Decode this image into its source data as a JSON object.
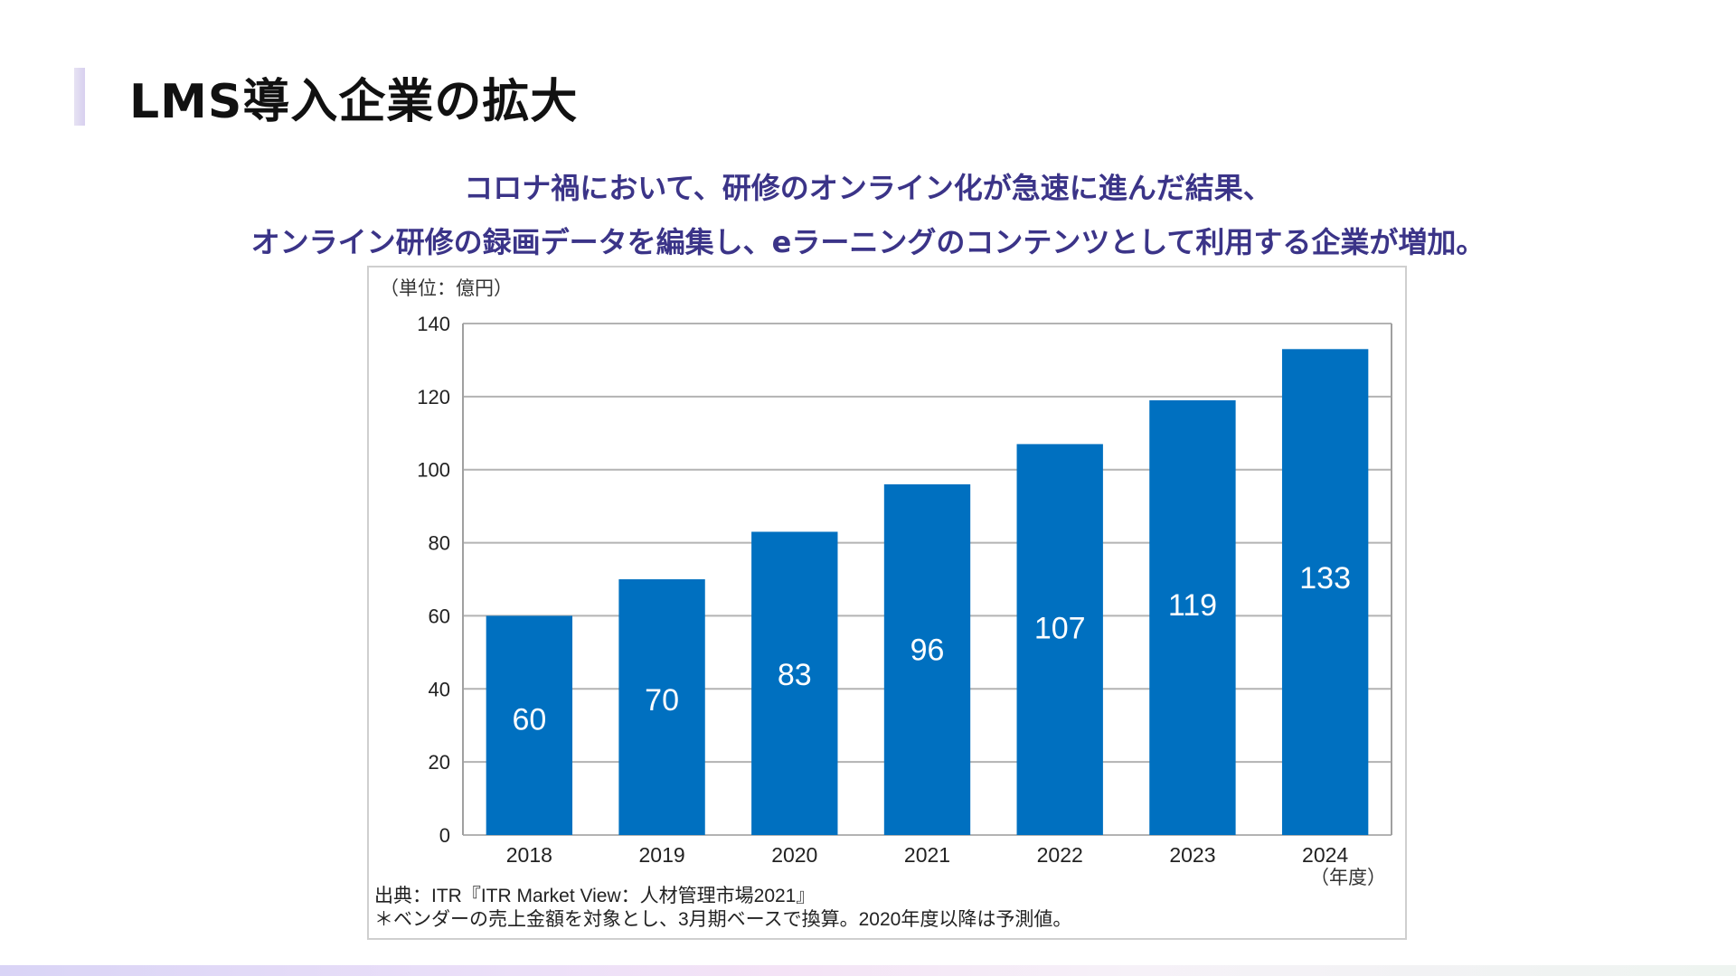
{
  "page": {
    "title": "LMS導入企業の拡大",
    "subtitle_lines": [
      "コロナ禍において、研修のオンライン化が急速に進んだ結果、",
      "オンライン研修の録画データを編集し、eラーニングのコンテンツとして利用する企業が増加。"
    ],
    "colors": {
      "accent": "#3b3488",
      "bar": "#0070c0"
    }
  },
  "chart_data": {
    "type": "bar",
    "title": "",
    "unit_label": "（単位：億円）",
    "xlabel": "（年度）",
    "ylabel": "",
    "categories": [
      "2018",
      "2019",
      "2020",
      "2021",
      "2022",
      "2023",
      "2024"
    ],
    "values": [
      60,
      70,
      83,
      96,
      107,
      119,
      133
    ],
    "ylim": [
      0,
      140
    ],
    "yticks": [
      0,
      20,
      40,
      60,
      80,
      100,
      120,
      140
    ],
    "grid": true,
    "data_labels": true,
    "source_lines": [
      "出典：ITR『ITR Market View：人材管理市場2021』",
      "＊ベンダーの売上金額を対象とし、3月期ベースで換算。2020年度以降は予測値。"
    ]
  }
}
